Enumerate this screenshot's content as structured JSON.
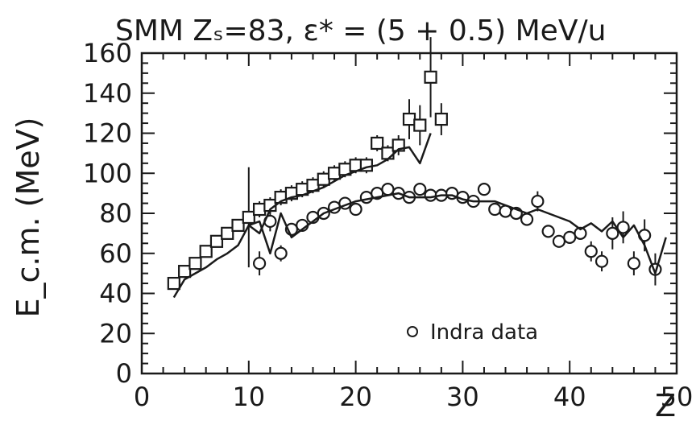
{
  "chart_data": {
    "type": "scatter",
    "title": "SMM Zₛ=83, ε* = (5 + 0.5) MeV/u",
    "xlabel": "Z",
    "ylabel": "E_c.m. (MeV)",
    "xlim": [
      0,
      50
    ],
    "ylim": [
      0,
      160
    ],
    "x_ticks": [
      "0",
      "10",
      "20",
      "30",
      "40",
      "50"
    ],
    "y_ticks": [
      "0",
      "20",
      "40",
      "60",
      "80",
      "100",
      "120",
      "140",
      "160"
    ],
    "legend": {
      "entries": [
        "Indra data"
      ],
      "placement": "bottom-center-right"
    },
    "series": [
      {
        "marker": "square",
        "x": [
          3,
          4,
          5,
          6,
          7,
          8,
          9,
          10,
          11,
          12,
          13,
          14,
          15,
          16,
          17,
          18,
          19,
          20,
          21,
          22,
          23,
          24,
          25,
          26,
          27,
          28
        ],
        "y": [
          45,
          51,
          55,
          61,
          66,
          70,
          74,
          78,
          82,
          84,
          88,
          90,
          92,
          94,
          97,
          100,
          102,
          104,
          104,
          115,
          110,
          114,
          127,
          124,
          148,
          127
        ],
        "err": [
          2,
          2,
          2,
          2,
          2,
          2,
          2,
          25,
          4,
          4,
          4,
          4,
          4,
          4,
          4,
          4,
          4,
          4,
          4,
          4,
          4,
          5,
          10,
          10,
          20,
          8
        ]
      },
      {
        "name": "Indra data",
        "marker": "circle",
        "x": [
          11,
          12,
          13,
          14,
          15,
          16,
          17,
          18,
          19,
          20,
          21,
          22,
          23,
          24,
          25,
          26,
          27,
          28,
          29,
          30,
          31,
          32,
          33,
          34,
          35,
          36,
          37,
          38,
          39,
          40,
          41,
          42,
          43,
          44,
          45,
          46,
          47,
          48
        ],
        "y": [
          55,
          76,
          60,
          72,
          74,
          78,
          80,
          83,
          85,
          82,
          88,
          90,
          92,
          90,
          88,
          92,
          89,
          89,
          90,
          88,
          86,
          92,
          82,
          81,
          80,
          77,
          86,
          71,
          66,
          68,
          70,
          61,
          56,
          70,
          73,
          55,
          69,
          52
        ],
        "err": [
          6,
          5,
          4,
          3,
          3,
          3,
          3,
          3,
          3,
          3,
          3,
          3,
          3,
          3,
          3,
          3,
          3,
          3,
          3,
          3,
          3,
          3,
          3,
          3,
          3,
          3,
          5,
          3,
          3,
          3,
          3,
          5,
          5,
          8,
          8,
          6,
          8,
          8
        ]
      },
      {
        "marker": "line",
        "x": [
          3,
          4,
          5,
          6,
          7,
          8,
          9,
          10,
          11,
          12,
          13,
          14,
          15,
          16,
          17,
          18,
          19,
          20,
          21,
          22,
          23,
          24,
          25,
          26,
          27
        ],
        "y": [
          38,
          47,
          50,
          53,
          57,
          60,
          64,
          74,
          70,
          82,
          86,
          88,
          89,
          91,
          93,
          96,
          99,
          101,
          103,
          104,
          107,
          112,
          113,
          105,
          120
        ]
      },
      {
        "marker": "line",
        "x": [
          10,
          11,
          12,
          13,
          14,
          15,
          16,
          17,
          18,
          19,
          20,
          21,
          22,
          23,
          24,
          25,
          26,
          27,
          28,
          29,
          30,
          31,
          32,
          33,
          34,
          35,
          36,
          37,
          38,
          39,
          40,
          41,
          42,
          43,
          44,
          45,
          46,
          47,
          48,
          49
        ],
        "y": [
          74,
          76,
          60,
          80,
          68,
          72,
          76,
          80,
          82,
          84,
          86,
          87,
          88,
          89,
          90,
          88,
          88,
          88,
          89,
          89,
          87,
          86,
          86,
          86,
          84,
          82,
          80,
          82,
          80,
          78,
          76,
          72,
          75,
          71,
          76,
          68,
          74,
          64,
          50,
          68
        ]
      }
    ]
  }
}
